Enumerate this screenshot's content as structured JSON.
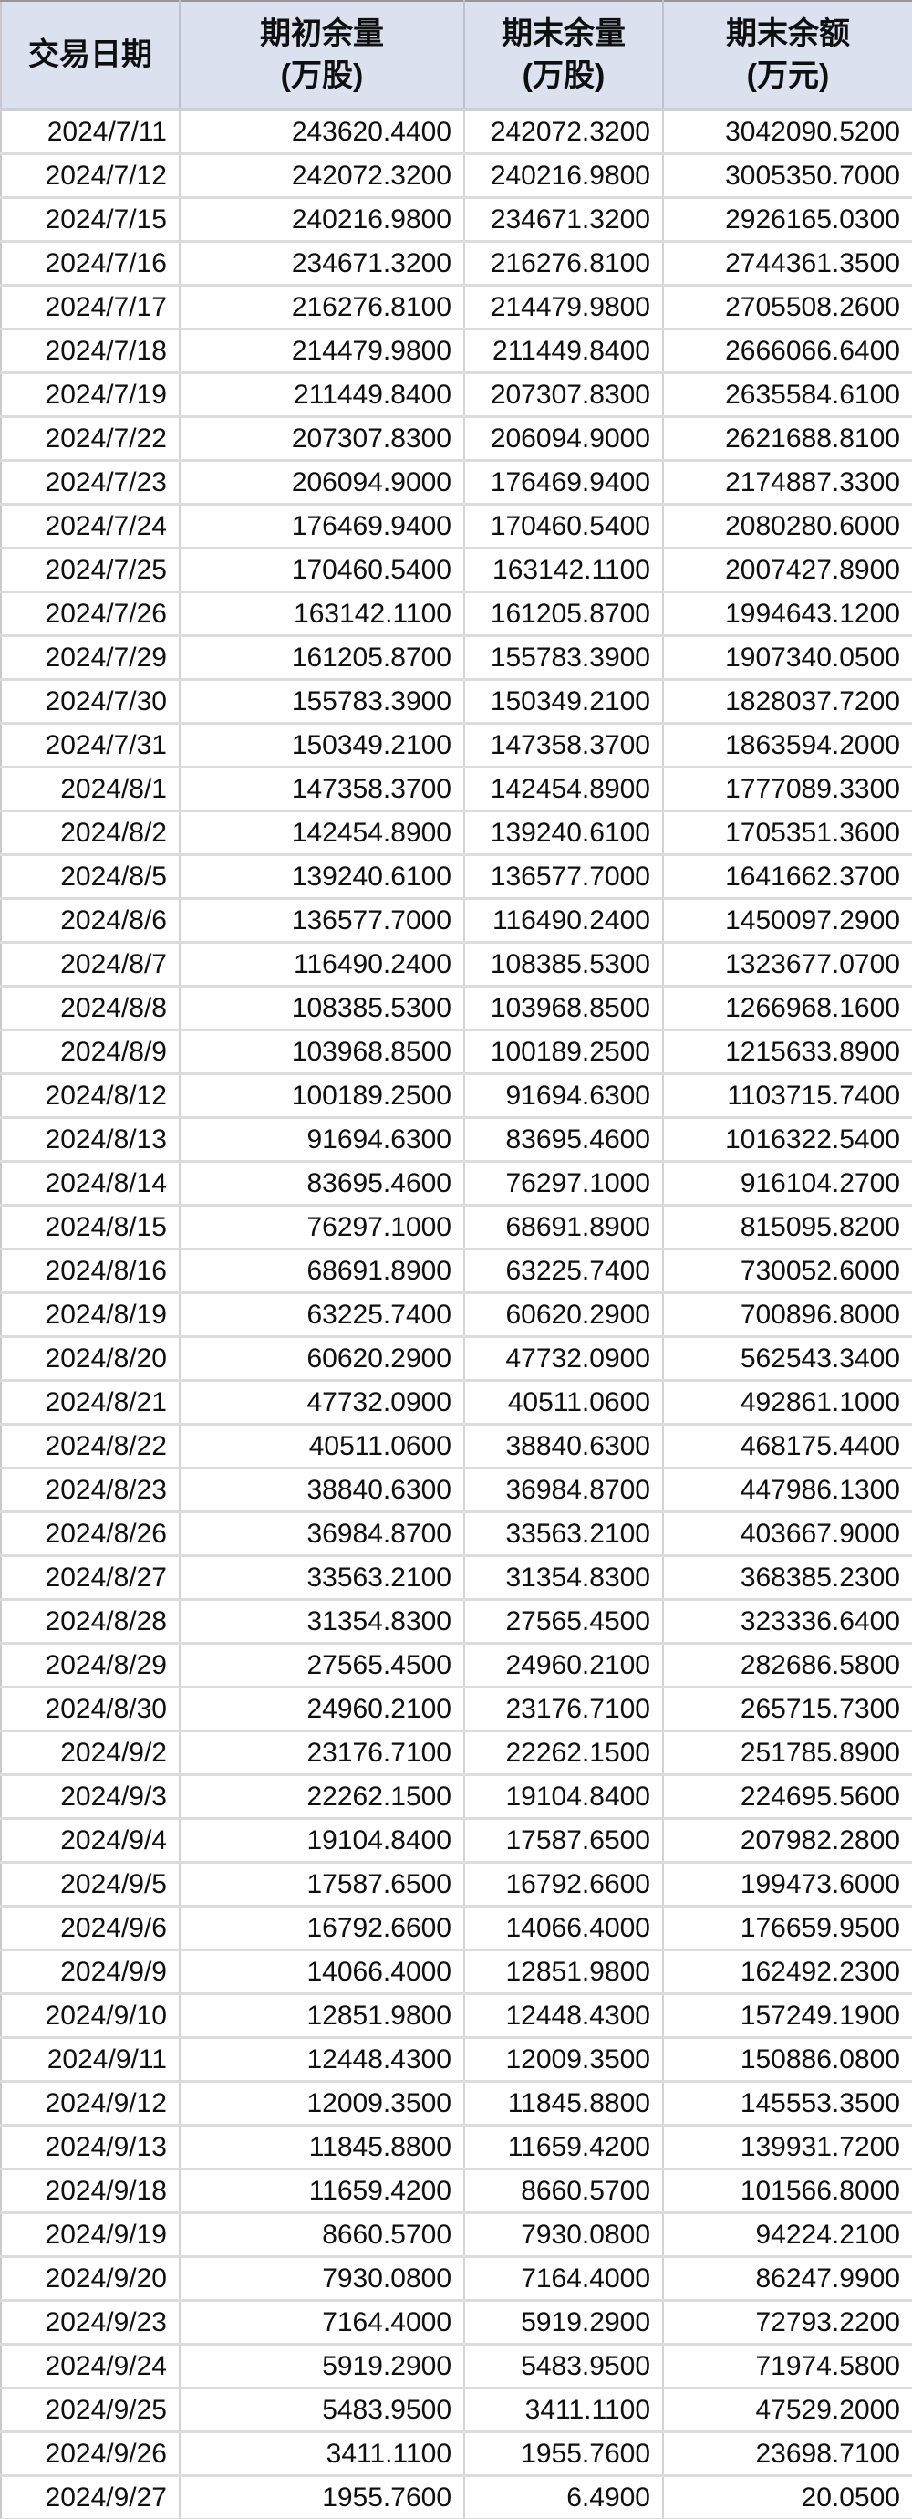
{
  "table": {
    "columns": [
      {
        "label": "交易日期",
        "unit": ""
      },
      {
        "label": "期初余量",
        "unit": "(万股)"
      },
      {
        "label": "期末余量",
        "unit": "(万股)"
      },
      {
        "label": "期末余额",
        "unit": "(万元)"
      }
    ],
    "rows": [
      [
        "2024/7/11",
        "243620.4400",
        "242072.3200",
        "3042090.5200"
      ],
      [
        "2024/7/12",
        "242072.3200",
        "240216.9800",
        "3005350.7000"
      ],
      [
        "2024/7/15",
        "240216.9800",
        "234671.3200",
        "2926165.0300"
      ],
      [
        "2024/7/16",
        "234671.3200",
        "216276.8100",
        "2744361.3500"
      ],
      [
        "2024/7/17",
        "216276.8100",
        "214479.9800",
        "2705508.2600"
      ],
      [
        "2024/7/18",
        "214479.9800",
        "211449.8400",
        "2666066.6400"
      ],
      [
        "2024/7/19",
        "211449.8400",
        "207307.8300",
        "2635584.6100"
      ],
      [
        "2024/7/22",
        "207307.8300",
        "206094.9000",
        "2621688.8100"
      ],
      [
        "2024/7/23",
        "206094.9000",
        "176469.9400",
        "2174887.3300"
      ],
      [
        "2024/7/24",
        "176469.9400",
        "170460.5400",
        "2080280.6000"
      ],
      [
        "2024/7/25",
        "170460.5400",
        "163142.1100",
        "2007427.8900"
      ],
      [
        "2024/7/26",
        "163142.1100",
        "161205.8700",
        "1994643.1200"
      ],
      [
        "2024/7/29",
        "161205.8700",
        "155783.3900",
        "1907340.0500"
      ],
      [
        "2024/7/30",
        "155783.3900",
        "150349.2100",
        "1828037.7200"
      ],
      [
        "2024/7/31",
        "150349.2100",
        "147358.3700",
        "1863594.2000"
      ],
      [
        "2024/8/1",
        "147358.3700",
        "142454.8900",
        "1777089.3300"
      ],
      [
        "2024/8/2",
        "142454.8900",
        "139240.6100",
        "1705351.3600"
      ],
      [
        "2024/8/5",
        "139240.6100",
        "136577.7000",
        "1641662.3700"
      ],
      [
        "2024/8/6",
        "136577.7000",
        "116490.2400",
        "1450097.2900"
      ],
      [
        "2024/8/7",
        "116490.2400",
        "108385.5300",
        "1323677.0700"
      ],
      [
        "2024/8/8",
        "108385.5300",
        "103968.8500",
        "1266968.1600"
      ],
      [
        "2024/8/9",
        "103968.8500",
        "100189.2500",
        "1215633.8900"
      ],
      [
        "2024/8/12",
        "100189.2500",
        "91694.6300",
        "1103715.7400"
      ],
      [
        "2024/8/13",
        "91694.6300",
        "83695.4600",
        "1016322.5400"
      ],
      [
        "2024/8/14",
        "83695.4600",
        "76297.1000",
        "916104.2700"
      ],
      [
        "2024/8/15",
        "76297.1000",
        "68691.8900",
        "815095.8200"
      ],
      [
        "2024/8/16",
        "68691.8900",
        "63225.7400",
        "730052.6000"
      ],
      [
        "2024/8/19",
        "63225.7400",
        "60620.2900",
        "700896.8000"
      ],
      [
        "2024/8/20",
        "60620.2900",
        "47732.0900",
        "562543.3400"
      ],
      [
        "2024/8/21",
        "47732.0900",
        "40511.0600",
        "492861.1000"
      ],
      [
        "2024/8/22",
        "40511.0600",
        "38840.6300",
        "468175.4400"
      ],
      [
        "2024/8/23",
        "38840.6300",
        "36984.8700",
        "447986.1300"
      ],
      [
        "2024/8/26",
        "36984.8700",
        "33563.2100",
        "403667.9000"
      ],
      [
        "2024/8/27",
        "33563.2100",
        "31354.8300",
        "368385.2300"
      ],
      [
        "2024/8/28",
        "31354.8300",
        "27565.4500",
        "323336.6400"
      ],
      [
        "2024/8/29",
        "27565.4500",
        "24960.2100",
        "282686.5800"
      ],
      [
        "2024/8/30",
        "24960.2100",
        "23176.7100",
        "265715.7300"
      ],
      [
        "2024/9/2",
        "23176.7100",
        "22262.1500",
        "251785.8900"
      ],
      [
        "2024/9/3",
        "22262.1500",
        "19104.8400",
        "224695.5600"
      ],
      [
        "2024/9/4",
        "19104.8400",
        "17587.6500",
        "207982.2800"
      ],
      [
        "2024/9/5",
        "17587.6500",
        "16792.6600",
        "199473.6000"
      ],
      [
        "2024/9/6",
        "16792.6600",
        "14066.4000",
        "176659.9500"
      ],
      [
        "2024/9/9",
        "14066.4000",
        "12851.9800",
        "162492.2300"
      ],
      [
        "2024/9/10",
        "12851.9800",
        "12448.4300",
        "157249.1900"
      ],
      [
        "2024/9/11",
        "12448.4300",
        "12009.3500",
        "150886.0800"
      ],
      [
        "2024/9/12",
        "12009.3500",
        "11845.8800",
        "145553.3500"
      ],
      [
        "2024/9/13",
        "11845.8800",
        "11659.4200",
        "139931.7200"
      ],
      [
        "2024/9/18",
        "11659.4200",
        "8660.5700",
        "101566.8000"
      ],
      [
        "2024/9/19",
        "8660.5700",
        "7930.0800",
        "94224.2100"
      ],
      [
        "2024/9/20",
        "7930.0800",
        "7164.4000",
        "86247.9900"
      ],
      [
        "2024/9/23",
        "7164.4000",
        "5919.2900",
        "72793.2200"
      ],
      [
        "2024/9/24",
        "5919.2900",
        "5483.9500",
        "71974.5800"
      ],
      [
        "2024/9/25",
        "5483.9500",
        "3411.1100",
        "47529.2000"
      ],
      [
        "2024/9/26",
        "3411.1100",
        "1955.7600",
        "23698.7100"
      ],
      [
        "2024/9/27",
        "1955.7600",
        "6.4900",
        "20.0500"
      ]
    ]
  },
  "colors": {
    "header_bg": "#dce1f0",
    "grid_horizontal": "#dcdce0",
    "grid_vertical": "#d4d4d8",
    "text": "#0f0f10",
    "row_bg": "#ffffff"
  }
}
